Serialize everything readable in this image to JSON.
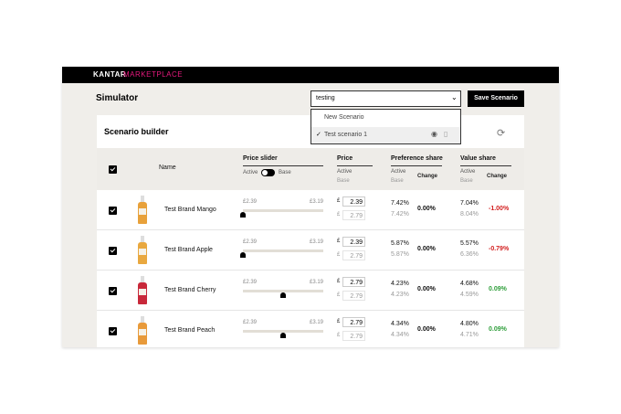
{
  "header": {
    "brand": "KANTAR",
    "brand_accent": "MARKETPLACE"
  },
  "toolbar": {
    "title": "Simulator",
    "scenario_select": "testing",
    "save_button": "Save Scenario"
  },
  "dropdown": {
    "items": [
      {
        "label": "New Scenario"
      },
      {
        "label": "Test scenario 1"
      }
    ]
  },
  "builder": {
    "title": "Scenario builder",
    "columns": {
      "name": "Name",
      "price_slider": "Price slider",
      "slider_active": "Active",
      "slider_base": "Base",
      "price": "Price",
      "price_active": "Active",
      "price_base": "Base",
      "pref": "Preference share",
      "pref_active": "Active",
      "pref_base": "Base",
      "pref_change": "Change",
      "value": "Value share",
      "value_active": "Active",
      "value_base": "Base",
      "value_change": "Change"
    },
    "currency": "£",
    "rows": [
      {
        "name": "Test Brand Mango",
        "color": "#e8a13a",
        "slider_min": "£2.39",
        "slider_max": "£3.19",
        "price_active": "2.39",
        "price_base": "2.79",
        "pref_active": "7.42%",
        "pref_base": "7.42%",
        "pref_change": "0.00%",
        "value_active": "7.04%",
        "value_base": "8.04%",
        "value_change": "-1.00%"
      },
      {
        "name": "Test Brand Apple",
        "color": "#e9a83f",
        "slider_min": "£2.39",
        "slider_max": "£3.19",
        "price_active": "2.39",
        "price_base": "2.79",
        "pref_active": "5.87%",
        "pref_base": "5.87%",
        "pref_change": "0.00%",
        "value_active": "5.57%",
        "value_base": "6.36%",
        "value_change": "-0.79%"
      },
      {
        "name": "Test Brand Cherry",
        "color": "#c8283a",
        "slider_min": "£2.39",
        "slider_max": "£3.19",
        "price_active": "2.79",
        "price_base": "2.79",
        "pref_active": "4.23%",
        "pref_base": "4.23%",
        "pref_change": "0.00%",
        "value_active": "4.68%",
        "value_base": "4.59%",
        "value_change": "0.09%"
      },
      {
        "name": "Test Brand Peach",
        "color": "#e89a3a",
        "slider_min": "£2.39",
        "slider_max": "£3.19",
        "price_active": "2.79",
        "price_base": "2.79",
        "pref_active": "4.34%",
        "pref_base": "4.34%",
        "pref_change": "0.00%",
        "value_active": "4.80%",
        "value_base": "4.71%",
        "value_change": "0.09%"
      }
    ]
  }
}
